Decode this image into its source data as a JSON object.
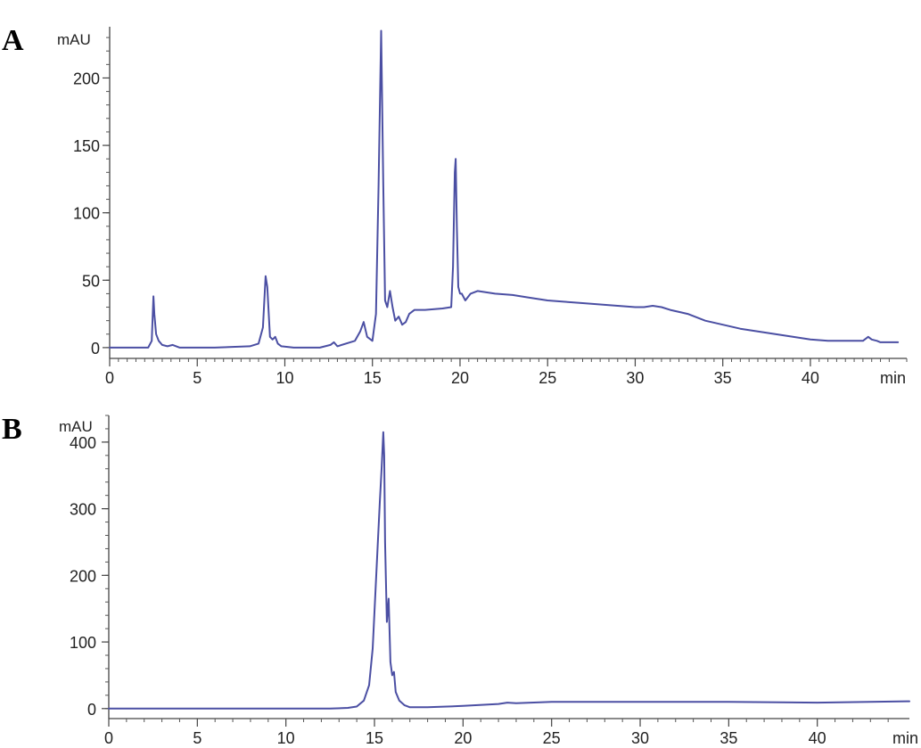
{
  "chart_data": [
    {
      "panel_label": "A",
      "type": "line",
      "ylabel": "mAU",
      "xunit": "min",
      "xlim": [
        0,
        45.5
      ],
      "ylim": [
        -8,
        238
      ],
      "xticks": [
        0,
        5,
        10,
        15,
        20,
        25,
        30,
        35,
        40
      ],
      "yticks": [
        0,
        50,
        100,
        150,
        200
      ],
      "grid": false,
      "line_color": "#4b4fa3",
      "series": [
        {
          "x": [
            0,
            2.2,
            2.4,
            2.5,
            2.55,
            2.65,
            2.8,
            3.0,
            3.3,
            3.6,
            4,
            6,
            8,
            8.5,
            8.75,
            8.9,
            9.0,
            9.15,
            9.3,
            9.45,
            9.6,
            9.8,
            10.5,
            12,
            12.6,
            12.8,
            13,
            14,
            14.3,
            14.5,
            14.7,
            15.0,
            15.2,
            15.35,
            15.5,
            15.62,
            15.72,
            15.85,
            16.0,
            16.15,
            16.3,
            16.5,
            16.7,
            16.9,
            17.1,
            17.4,
            18.0,
            19.0,
            19.5,
            19.6,
            19.7,
            19.75,
            19.82,
            19.9,
            20.0,
            20.1,
            20.3,
            20.6,
            21,
            22,
            23,
            24,
            25,
            26,
            27,
            28,
            29,
            30,
            30.5,
            31,
            31.5,
            32,
            33,
            34,
            35,
            36,
            37,
            38,
            39,
            40,
            41,
            42,
            43,
            43.3,
            43.5,
            43.8,
            44,
            45
          ],
          "y": [
            0,
            0,
            5,
            38,
            25,
            10,
            5,
            2,
            1,
            2,
            0,
            0,
            1,
            3,
            15,
            53,
            45,
            8,
            6,
            8,
            3,
            1,
            0,
            0,
            2,
            4,
            1,
            5,
            12,
            19,
            8,
            5,
            25,
            120,
            235,
            120,
            35,
            30,
            42,
            30,
            20,
            23,
            17,
            19,
            25,
            28,
            28,
            29,
            30,
            60,
            130,
            140,
            90,
            45,
            40,
            40,
            35,
            40,
            42,
            40,
            39,
            37,
            35,
            34,
            33,
            32,
            31,
            30,
            30,
            31,
            30,
            28,
            25,
            20,
            17,
            14,
            12,
            10,
            8,
            6,
            5,
            5,
            5,
            8,
            6,
            5,
            4,
            4
          ]
        }
      ]
    },
    {
      "panel_label": "B",
      "type": "line",
      "ylabel": "mAU",
      "xunit": "min",
      "xlim": [
        0,
        45.2
      ],
      "ylim": [
        -15,
        440
      ],
      "xticks": [
        0,
        5,
        10,
        15,
        20,
        25,
        30,
        35,
        40
      ],
      "yticks": [
        0,
        100,
        200,
        300,
        400
      ],
      "grid": false,
      "line_color": "#4b4fa3",
      "series": [
        {
          "x": [
            0,
            5,
            10,
            12.5,
            13.5,
            14.0,
            14.4,
            14.7,
            14.9,
            15.1,
            15.3,
            15.4,
            15.5,
            15.55,
            15.6,
            15.7,
            15.8,
            15.9,
            16.0,
            16.1,
            16.2,
            16.4,
            16.7,
            17,
            18,
            20,
            22,
            22.5,
            23,
            25,
            30,
            35,
            40,
            45.2
          ],
          "y": [
            0,
            0,
            0,
            0,
            1,
            3,
            12,
            35,
            90,
            200,
            310,
            360,
            415,
            380,
            250,
            130,
            165,
            70,
            50,
            55,
            25,
            12,
            5,
            2,
            2,
            4,
            7,
            9,
            8,
            10,
            10,
            10,
            9,
            11
          ]
        }
      ]
    }
  ]
}
